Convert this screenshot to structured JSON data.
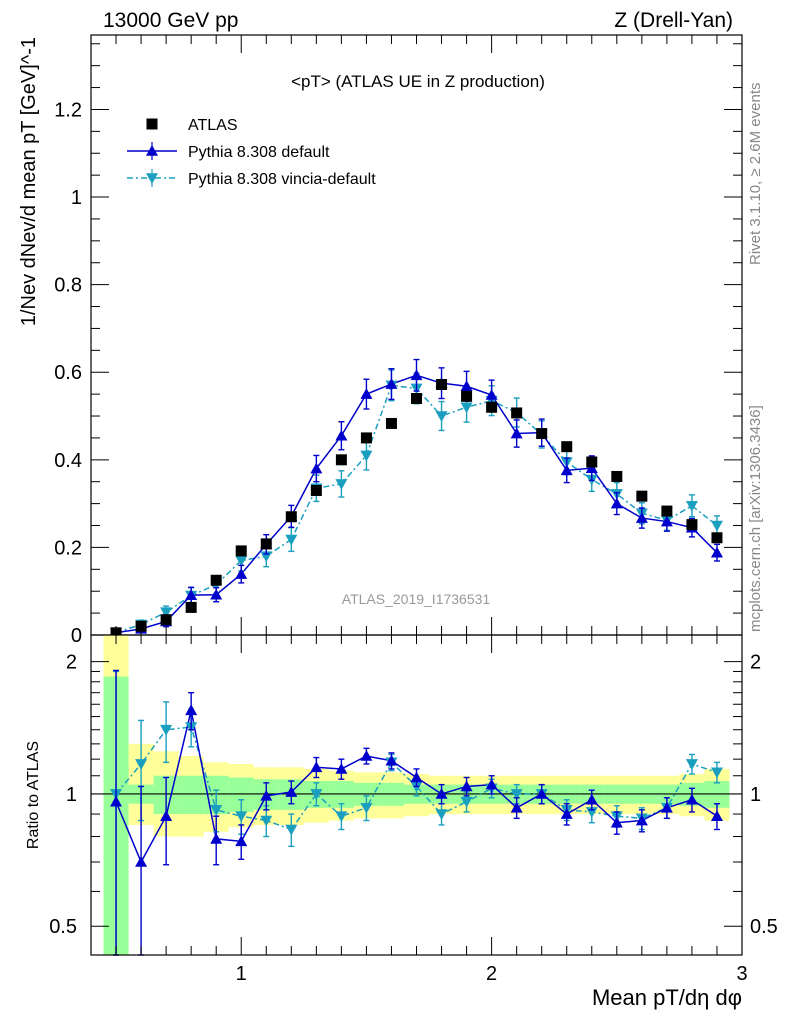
{
  "header": {
    "energy": "13000 GeV pp",
    "process": "Z (Drell-Yan)"
  },
  "side_labels": {
    "rivet": "Rivet 3.1.10, ≥ 2.6M events",
    "mcplots": "mcplots.cern.ch [arXiv:1306.3436]"
  },
  "chart_data": {
    "type": "scatter",
    "title": "<pT> (ATLAS UE in Z production)",
    "analysis_id": "ATLAS_2019_I1736531",
    "legend_position": "top-left",
    "legend": [
      "ATLAS",
      "Pythia 8.308 default",
      "Pythia 8.308 vincia-default"
    ],
    "colors": {
      "data": "#000000",
      "default": "#0000cc",
      "vincia": "#1a9fbf",
      "band_inner": "#99ff99",
      "band_outer": "#ffff99"
    },
    "xlabel": "Mean pT/dη dφ",
    "xlim": [
      0.4,
      3.0
    ],
    "x_ticks": [
      "1",
      "2",
      "3"
    ],
    "main_panel": {
      "ylabel": "1/Nev dNev/d mean pT [GeV]^-1",
      "ylim": [
        0,
        1.37
      ],
      "y_ticks": [
        "0",
        "0.2",
        "0.4",
        "0.6",
        "0.8",
        "1",
        "1.2"
      ],
      "x": [
        0.5,
        0.6,
        0.7,
        0.8,
        0.9,
        1.0,
        1.1,
        1.2,
        1.3,
        1.4,
        1.5,
        1.6,
        1.7,
        1.8,
        1.9,
        2.0,
        2.1,
        2.2,
        2.3,
        2.4,
        2.5,
        2.6,
        2.7,
        2.8,
        2.9
      ],
      "series": [
        {
          "name": "ATLAS",
          "values": [
            0.005,
            0.02,
            0.035,
            0.063,
            0.125,
            0.192,
            0.208,
            0.27,
            0.33,
            0.4,
            0.45,
            0.483,
            0.54,
            0.572,
            0.545,
            0.52,
            0.507,
            0.46,
            0.43,
            0.395,
            0.362,
            0.317,
            0.283,
            0.252,
            0.222
          ],
          "errors": [
            0.002,
            0.003,
            0.003,
            0.004,
            0.005,
            0.006,
            0.006,
            0.007,
            0.008,
            0.008,
            0.009,
            0.009,
            0.01,
            0.01,
            0.01,
            0.01,
            0.01,
            0.01,
            0.009,
            0.009,
            0.009,
            0.008,
            0.008,
            0.008,
            0.008
          ]
        },
        {
          "name": "Pythia 8.308 default",
          "values": [
            0.005,
            0.014,
            0.031,
            0.091,
            0.092,
            0.139,
            0.207,
            0.271,
            0.38,
            0.455,
            0.55,
            0.573,
            0.593,
            0.575,
            0.568,
            0.548,
            0.46,
            0.462,
            0.376,
            0.381,
            0.3,
            0.267,
            0.259,
            0.245,
            0.188
          ],
          "errors": [
            0.005,
            0.008,
            0.012,
            0.018,
            0.016,
            0.02,
            0.022,
            0.025,
            0.03,
            0.032,
            0.034,
            0.035,
            0.036,
            0.035,
            0.034,
            0.034,
            0.031,
            0.031,
            0.028,
            0.028,
            0.025,
            0.023,
            0.022,
            0.021,
            0.019
          ]
        },
        {
          "name": "Pythia 8.308 vincia-default",
          "values": [
            0.005,
            0.024,
            0.052,
            0.09,
            0.115,
            0.17,
            0.18,
            0.218,
            0.335,
            0.345,
            0.41,
            0.57,
            0.563,
            0.5,
            0.52,
            0.535,
            0.508,
            0.458,
            0.395,
            0.355,
            0.322,
            0.278,
            0.262,
            0.295,
            0.25
          ],
          "errors": [
            0.005,
            0.01,
            0.014,
            0.018,
            0.02,
            0.024,
            0.024,
            0.027,
            0.03,
            0.03,
            0.033,
            0.035,
            0.035,
            0.033,
            0.034,
            0.034,
            0.033,
            0.031,
            0.029,
            0.027,
            0.026,
            0.024,
            0.023,
            0.025,
            0.022
          ]
        }
      ]
    },
    "ratio_panel": {
      "ylabel": "Ratio to ATLAS",
      "scale": "log",
      "ylim": [
        0.43,
        2.3
      ],
      "y_ticks": [
        "0.5",
        "1",
        "2"
      ],
      "band_inner": [
        [
          0.43,
          1.85
        ],
        [
          0.95,
          1.05
        ],
        [
          0.9,
          1.1
        ],
        [
          0.9,
          1.1
        ],
        [
          0.9,
          1.1
        ],
        [
          0.91,
          1.09
        ],
        [
          0.92,
          1.08
        ],
        [
          0.92,
          1.08
        ],
        [
          0.93,
          1.07
        ],
        [
          0.93,
          1.07
        ],
        [
          0.94,
          1.06
        ],
        [
          0.94,
          1.06
        ],
        [
          0.95,
          1.05
        ],
        [
          0.95,
          1.05
        ],
        [
          0.95,
          1.05
        ],
        [
          0.95,
          1.05
        ],
        [
          0.95,
          1.05
        ],
        [
          0.95,
          1.05
        ],
        [
          0.95,
          1.05
        ],
        [
          0.95,
          1.05
        ],
        [
          0.95,
          1.05
        ],
        [
          0.95,
          1.05
        ],
        [
          0.95,
          1.05
        ],
        [
          0.94,
          1.06
        ],
        [
          0.93,
          1.07
        ]
      ],
      "band_outer": [
        [
          0.43,
          2.3
        ],
        [
          0.85,
          1.3
        ],
        [
          0.8,
          1.25
        ],
        [
          0.8,
          1.22
        ],
        [
          0.82,
          1.18
        ],
        [
          0.84,
          1.17
        ],
        [
          0.85,
          1.15
        ],
        [
          0.85,
          1.15
        ],
        [
          0.86,
          1.14
        ],
        [
          0.87,
          1.13
        ],
        [
          0.88,
          1.12
        ],
        [
          0.88,
          1.12
        ],
        [
          0.89,
          1.11
        ],
        [
          0.9,
          1.1
        ],
        [
          0.9,
          1.1
        ],
        [
          0.9,
          1.1
        ],
        [
          0.9,
          1.1
        ],
        [
          0.9,
          1.1
        ],
        [
          0.9,
          1.1
        ],
        [
          0.9,
          1.1
        ],
        [
          0.9,
          1.1
        ],
        [
          0.9,
          1.1
        ],
        [
          0.9,
          1.1
        ],
        [
          0.89,
          1.11
        ],
        [
          0.87,
          1.14
        ]
      ],
      "series": [
        {
          "name": "Pythia 8.308 default",
          "values": [
            0.96,
            0.7,
            0.89,
            1.55,
            0.79,
            0.78,
            0.99,
            1.01,
            1.15,
            1.14,
            1.22,
            1.19,
            1.09,
            1.0,
            1.04,
            1.05,
            0.93,
            1.0,
            0.9,
            0.97,
            0.86,
            0.87,
            0.93,
            0.97,
            0.89
          ],
          "errors": [
            0.95,
            0.34,
            0.2,
            0.15,
            0.1,
            0.07,
            0.07,
            0.06,
            0.06,
            0.06,
            0.05,
            0.05,
            0.05,
            0.05,
            0.05,
            0.05,
            0.05,
            0.05,
            0.05,
            0.05,
            0.05,
            0.05,
            0.05,
            0.06,
            0.06
          ]
        },
        {
          "name": "Pythia 8.308 vincia-default",
          "values": [
            1.0,
            1.17,
            1.4,
            1.42,
            0.92,
            0.89,
            0.87,
            0.83,
            1.0,
            0.89,
            0.93,
            1.18,
            1.04,
            0.9,
            0.96,
            1.03,
            1.0,
            1.0,
            0.92,
            0.91,
            0.89,
            0.88,
            0.93,
            1.17,
            1.12
          ],
          "errors": [
            0.9,
            0.3,
            0.22,
            0.14,
            0.1,
            0.08,
            0.07,
            0.07,
            0.06,
            0.06,
            0.06,
            0.05,
            0.05,
            0.05,
            0.05,
            0.05,
            0.05,
            0.05,
            0.05,
            0.05,
            0.05,
            0.05,
            0.05,
            0.06,
            0.06
          ]
        }
      ]
    }
  }
}
